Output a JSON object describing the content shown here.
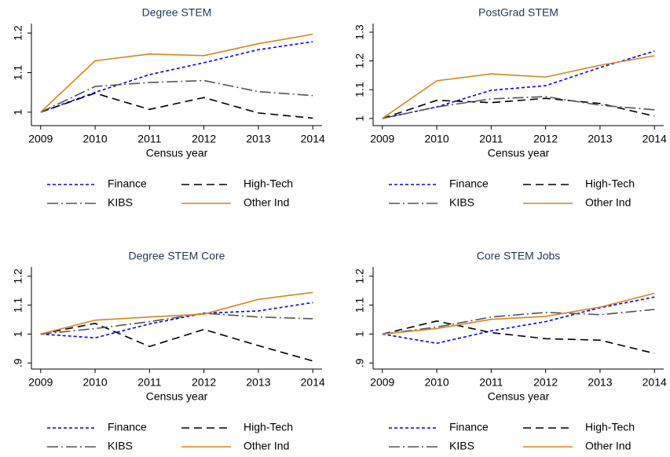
{
  "chart_data": [
    {
      "type": "line",
      "title": "Degree STEM",
      "x_label": "Census year",
      "x": [
        2009,
        2010,
        2011,
        2012,
        2013,
        2014
      ],
      "xlim": [
        2008.83,
        2014.17
      ],
      "xticks": [
        2009,
        2010,
        2011,
        2012,
        2013,
        2014
      ],
      "ylim": [
        0.966,
        1.224
      ],
      "yticks": [
        1,
        1.1,
        1.2
      ],
      "legend": "bottom",
      "series": [
        {
          "name": "Finance",
          "color": "#0000ff",
          "style": "dotted",
          "values": [
            1,
            1.05,
            1.095,
            1.125,
            1.158,
            1.178
          ]
        },
        {
          "name": "High-Tech",
          "color": "#000000",
          "style": "dashed",
          "values": [
            1,
            1.048,
            1.007,
            1.037,
            0.998,
            0.985
          ]
        },
        {
          "name": "KIBS",
          "color": "#555555",
          "style": "dashdot",
          "values": [
            1,
            1.065,
            1.075,
            1.08,
            1.052,
            1.042
          ]
        },
        {
          "name": "Other Ind",
          "color": "#d9841a",
          "style": "solid",
          "values": [
            1,
            1.13,
            1.147,
            1.143,
            1.173,
            1.197
          ]
        }
      ]
    },
    {
      "type": "line",
      "title": "PostGrad STEM",
      "x_label": "Census year",
      "x": [
        2009,
        2010,
        2011,
        2012,
        2013,
        2014
      ],
      "xlim": [
        2008.83,
        2014.17
      ],
      "xticks": [
        2009,
        2010,
        2011,
        2012,
        2013,
        2014
      ],
      "ylim": [
        0.975,
        1.33
      ],
      "yticks": [
        1,
        1.1,
        1.2,
        1.3
      ],
      "legend": "bottom",
      "series": [
        {
          "name": "Finance",
          "color": "#0000ff",
          "style": "dotted",
          "values": [
            1,
            1.04,
            1.098,
            1.114,
            1.177,
            1.234
          ]
        },
        {
          "name": "High-Tech",
          "color": "#000000",
          "style": "dashed",
          "values": [
            1,
            1.063,
            1.055,
            1.07,
            1.052,
            1.008
          ]
        },
        {
          "name": "KIBS",
          "color": "#555555",
          "style": "dashdot",
          "values": [
            1,
            1.04,
            1.068,
            1.076,
            1.046,
            1.03
          ]
        },
        {
          "name": "Other Ind",
          "color": "#d9841a",
          "style": "solid",
          "values": [
            1,
            1.131,
            1.155,
            1.144,
            1.185,
            1.218
          ]
        }
      ]
    },
    {
      "type": "line",
      "title": "Degree STEM Core",
      "x_label": "Census year",
      "x": [
        2009,
        2010,
        2011,
        2012,
        2013,
        2014
      ],
      "xlim": [
        2008.83,
        2014.17
      ],
      "xticks": [
        2009,
        2010,
        2011,
        2012,
        2013,
        2014
      ],
      "ylim": [
        0.879,
        1.232
      ],
      "yticks": [
        {
          "value": 0.9,
          "label": ".9"
        },
        1,
        1.1,
        1.2
      ],
      "legend": "bottom",
      "series": [
        {
          "name": "Finance",
          "color": "#0000ff",
          "style": "dotted",
          "values": [
            1,
            0.987,
            1.035,
            1.072,
            1.08,
            1.109
          ]
        },
        {
          "name": "High-Tech",
          "color": "#000000",
          "style": "dashed",
          "values": [
            1,
            1.037,
            0.957,
            1.016,
            0.96,
            0.907
          ]
        },
        {
          "name": "KIBS",
          "color": "#555555",
          "style": "dashdot",
          "values": [
            1,
            1.019,
            1.043,
            1.072,
            1.059,
            1.053
          ]
        },
        {
          "name": "Other Ind",
          "color": "#d9841a",
          "style": "solid",
          "values": [
            1,
            1.048,
            1.059,
            1.069,
            1.12,
            1.144
          ]
        }
      ]
    },
    {
      "type": "line",
      "title": "Core STEM Jobs",
      "x_label": "Census year",
      "x": [
        2009,
        2010,
        2011,
        2012,
        2013,
        2014
      ],
      "xlim": [
        2008.83,
        2014.17
      ],
      "xticks": [
        2009,
        2010,
        2011,
        2012,
        2013,
        2014
      ],
      "ylim": [
        0.879,
        1.232
      ],
      "yticks": [
        {
          "value": 0.9,
          "label": ".9"
        },
        1,
        1.1,
        1.2
      ],
      "legend": "bottom",
      "series": [
        {
          "name": "Finance",
          "color": "#0000ff",
          "style": "dotted",
          "values": [
            1,
            0.968,
            1.011,
            1.043,
            1.091,
            1.128
          ]
        },
        {
          "name": "High-Tech",
          "color": "#000000",
          "style": "dashed",
          "values": [
            1,
            1.045,
            1.005,
            0.984,
            0.979,
            0.933
          ]
        },
        {
          "name": "KIBS",
          "color": "#555555",
          "style": "dashdot",
          "values": [
            1,
            1.024,
            1.059,
            1.075,
            1.067,
            1.085
          ]
        },
        {
          "name": "Other Ind",
          "color": "#d9841a",
          "style": "solid",
          "values": [
            1,
            1.019,
            1.051,
            1.061,
            1.093,
            1.141
          ]
        }
      ]
    }
  ]
}
